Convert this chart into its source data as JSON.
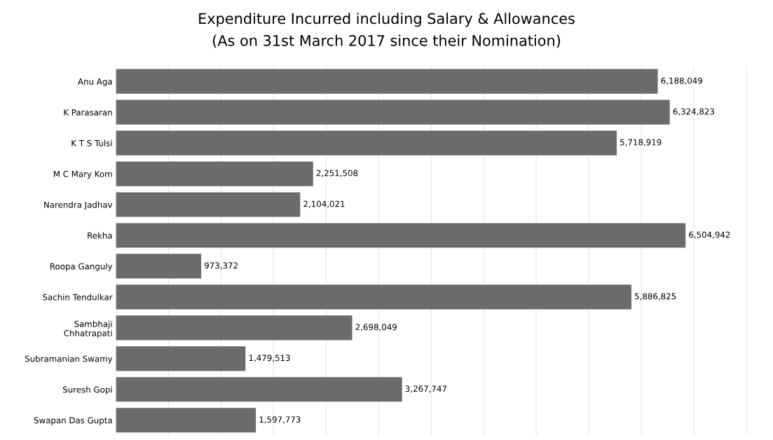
{
  "chart_data": {
    "type": "bar",
    "orientation": "horizontal",
    "title": "Expenditure Incurred including Salary & Allowances",
    "subtitle": "(As on 31st March 2017 since their Nomination)",
    "categories": [
      "Anu Aga",
      "K Parasaran",
      "K T S Tulsi",
      "M C Mary Kom",
      "Narendra Jadhav",
      "Rekha",
      "Roopa Ganguly",
      "Sachin Tendulkar",
      "Sambhaji\nChhatrapati",
      "Subramanian Swamy",
      "Suresh Gopi",
      "Swapan Das Gupta"
    ],
    "values": [
      6188049,
      6324823,
      5718919,
      2251508,
      2104021,
      6504942,
      973372,
      5886825,
      2698049,
      1479513,
      3267747,
      1597773
    ],
    "color": "#6b6b6b",
    "value_labels": [
      "6,188,049",
      "6,324,823",
      "5,718,919",
      "2,251,508",
      "2,104,021",
      "6,504,942",
      "973,372",
      "5,886,825",
      "2,698,049",
      "1,479,513",
      "3,267,747",
      "1,597,773"
    ],
    "grid": "x",
    "tick_labels": "y"
  }
}
